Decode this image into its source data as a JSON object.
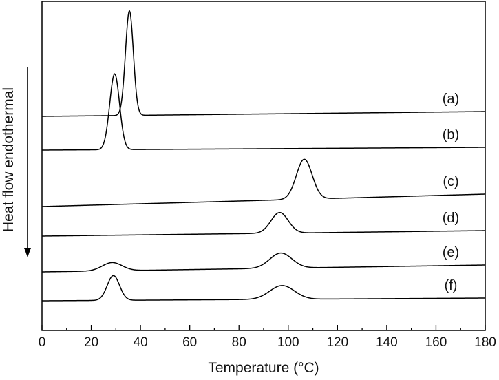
{
  "chart_data": {
    "type": "line",
    "title": "",
    "xlabel": "Temperature (°C)",
    "ylabel": "Heat flow endothermal",
    "xlim": [
      0,
      180
    ],
    "x_ticks": [
      0,
      20,
      40,
      60,
      80,
      100,
      120,
      140,
      160,
      180
    ],
    "y_ticks_shown": false,
    "grid": false,
    "legend": "none (labels at right end of each curve)",
    "y_arrow_direction": "down",
    "line_color": "#000000",
    "series": [
      {
        "name": "(a)",
        "baseline_start": 169,
        "baseline_end": 162,
        "peaks": [
          {
            "center": 35.5,
            "width": 1.6,
            "amp": 152
          }
        ]
      },
      {
        "name": "(b)",
        "baseline_start": 218,
        "baseline_end": 214,
        "peaks": [
          {
            "center": 29.5,
            "width": 2.0,
            "amp": 110
          }
        ]
      },
      {
        "name": "(c)",
        "baseline_start": 300,
        "baseline_end": 282,
        "peaks": [
          {
            "center": 106.5,
            "width": 3.2,
            "amp": 58
          }
        ]
      },
      {
        "name": "(d)",
        "baseline_start": 343,
        "baseline_end": 335,
        "peaks": [
          {
            "center": 96.5,
            "width": 3.5,
            "amp": 30
          }
        ]
      },
      {
        "name": "(e)",
        "baseline_start": 395,
        "baseline_end": 385,
        "peaks": [
          {
            "center": 28.5,
            "width": 4.0,
            "amp": 12
          },
          {
            "center": 97.0,
            "width": 4.5,
            "amp": 22
          }
        ]
      },
      {
        "name": "(f)",
        "baseline_start": 437,
        "baseline_end": 433,
        "peaks": [
          {
            "center": 29.0,
            "width": 2.5,
            "amp": 36
          },
          {
            "center": 97.5,
            "width": 5.0,
            "amp": 20
          }
        ]
      }
    ]
  }
}
